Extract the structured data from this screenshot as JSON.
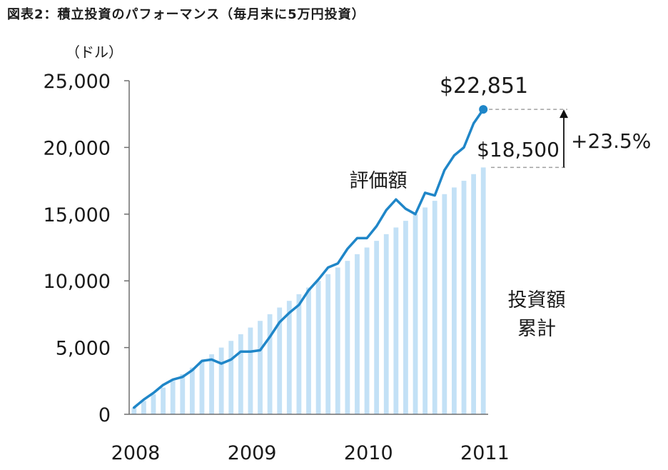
{
  "chart_data": {
    "type": "bar+line",
    "title": "図表2：積立投資のパフォーマンス（毎月末に5万円投資）",
    "unit_label": "（ドル）",
    "ylim": [
      0,
      25000
    ],
    "y_ticks": [
      "0",
      "5,000",
      "10,000",
      "15,000",
      "20,000",
      "25,000"
    ],
    "y_tick_values": [
      0,
      5000,
      10000,
      15000,
      20000,
      25000
    ],
    "x_ticks": [
      "2008",
      "2009",
      "2010",
      "2011"
    ],
    "x_tick_months": [
      0,
      12,
      24,
      36
    ],
    "monthly_contribution": 500,
    "series": [
      {
        "name": "投資額累計",
        "kind": "bar",
        "color": "#c3e1f6",
        "values": [
          500,
          1000,
          1500,
          2000,
          2500,
          3000,
          3500,
          4000,
          4500,
          5000,
          5500,
          6000,
          6500,
          7000,
          7500,
          8000,
          8500,
          9000,
          9500,
          10000,
          10500,
          11000,
          11500,
          12000,
          12500,
          13000,
          13500,
          14000,
          14500,
          15000,
          15500,
          16000,
          16500,
          17000,
          17500,
          18000,
          18500
        ]
      },
      {
        "name": "評価額",
        "kind": "line",
        "color": "#1f86c8",
        "values": [
          500,
          1100,
          1600,
          2200,
          2600,
          2800,
          3300,
          4000,
          4100,
          3800,
          4100,
          4700,
          4700,
          4800,
          5800,
          6900,
          7600,
          8200,
          9300,
          10100,
          11000,
          11300,
          12400,
          13200,
          13200,
          14100,
          15300,
          16100,
          15400,
          15000,
          16600,
          16400,
          18300,
          19400,
          20000,
          21800,
          22851
        ]
      }
    ],
    "annotations": {
      "end_value_label": "$22,851",
      "invested_label": "$18,500",
      "gain_label": "+23.5%",
      "line_label": "評価額",
      "bar_label_line1": "投資額",
      "bar_label_line2": "累計"
    },
    "colors": {
      "line": "#1f86c8",
      "bar": "#c3e1f6",
      "axis": "#6e6e6e",
      "guide": "#a0a0a0"
    }
  }
}
